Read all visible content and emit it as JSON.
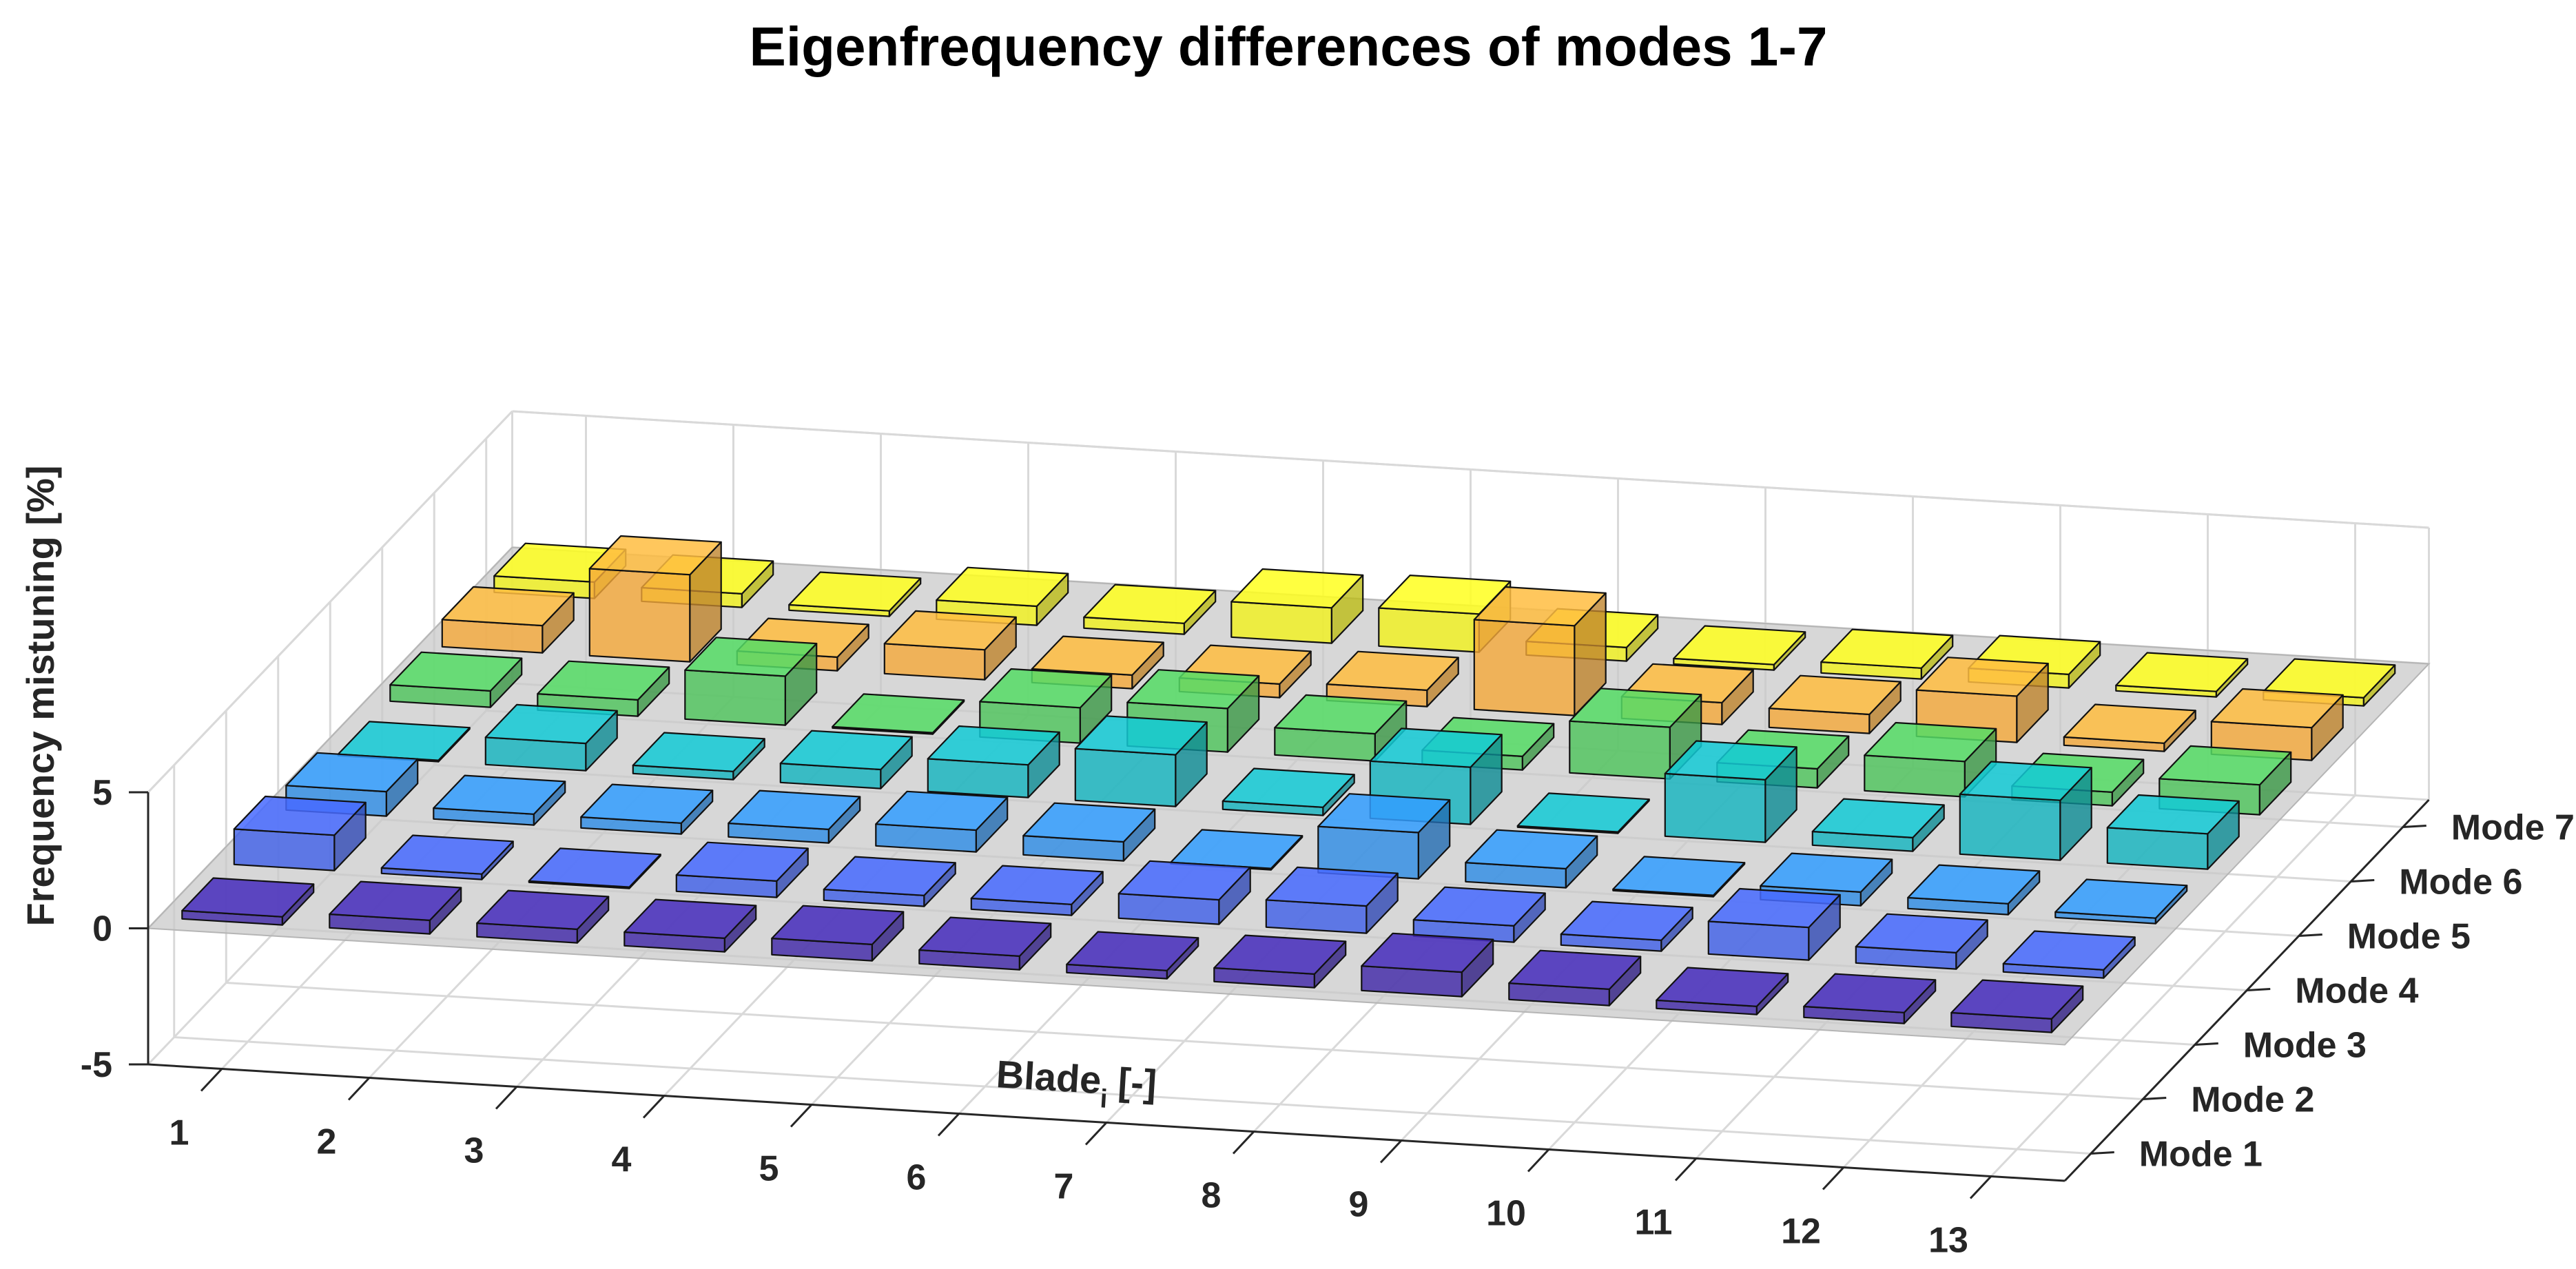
{
  "chart_data": {
    "type": "bar3d",
    "title": "Eigenfrequency differences of modes 1-7",
    "xlabel": "Blade",
    "xlabel_subscript": "i",
    "xlabel_suffix": "[-]",
    "ylabel": "Frequency mistuning [%]",
    "categories": [
      "1",
      "2",
      "3",
      "4",
      "5",
      "6",
      "7",
      "8",
      "9",
      "10",
      "11",
      "12",
      "13"
    ],
    "modes": [
      "Mode 1",
      "Mode 2",
      "Mode 3",
      "Mode 4",
      "Mode 5",
      "Mode 6",
      "Mode 7"
    ],
    "zlim": [
      -5,
      5
    ],
    "zticks": [
      "-5",
      "0",
      "5"
    ],
    "zero_plane": "semi-transparent grey plane at 0",
    "series": [
      {
        "name": "Mode 1",
        "color": "#3e26a8",
        "values": [
          0.3,
          0.5,
          0.5,
          0.5,
          0.6,
          0.5,
          0.3,
          0.5,
          0.9,
          0.6,
          0.3,
          0.4,
          0.5
        ]
      },
      {
        "name": "Mode 2",
        "color": "#3f5fe8",
        "values": [
          1.3,
          0.2,
          0.05,
          0.6,
          0.4,
          0.4,
          0.9,
          1.0,
          0.6,
          0.4,
          1.2,
          0.6,
          0.3
        ]
      },
      {
        "name": "Mode 3",
        "color": "#2d8ce6",
        "values": [
          0.9,
          0.4,
          0.4,
          0.5,
          0.8,
          0.7,
          0.05,
          1.7,
          0.7,
          0.05,
          0.5,
          0.4,
          0.2
        ]
      },
      {
        "name": "Mode 4",
        "color": "#11b4bf",
        "values": [
          0.05,
          1.0,
          0.3,
          0.7,
          1.2,
          1.9,
          0.3,
          2.1,
          0.05,
          2.3,
          0.5,
          2.2,
          1.3
        ]
      },
      {
        "name": "Mode 5",
        "color": "#4cc45a",
        "values": [
          0.6,
          0.6,
          1.8,
          0.05,
          1.3,
          1.6,
          1.0,
          0.5,
          1.9,
          0.7,
          1.3,
          0.5,
          1.1
        ]
      },
      {
        "name": "Mode 6",
        "color": "#f5a93a",
        "values": [
          1.0,
          3.2,
          0.5,
          1.1,
          0.5,
          0.5,
          0.6,
          3.3,
          0.8,
          0.7,
          1.7,
          0.3,
          1.2
        ]
      },
      {
        "name": "Mode 7",
        "color": "#f2f21c",
        "values": [
          0.6,
          0.5,
          0.2,
          0.7,
          0.4,
          1.3,
          1.4,
          0.5,
          0.2,
          0.4,
          0.5,
          0.2,
          0.3
        ]
      }
    ]
  }
}
